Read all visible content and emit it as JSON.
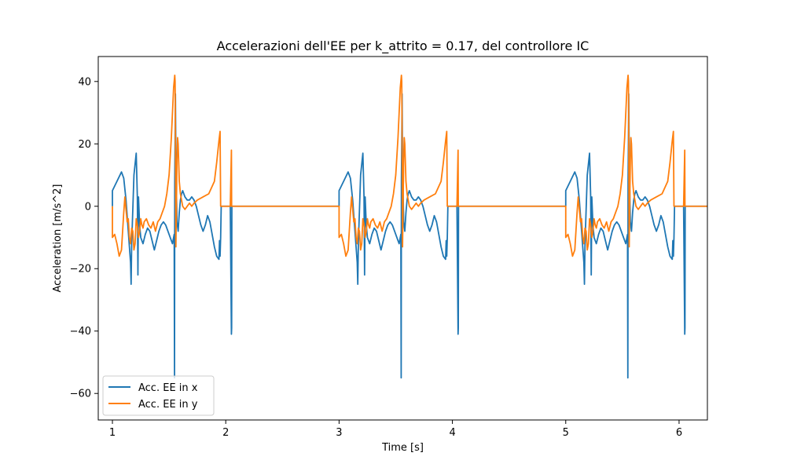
{
  "chart_data": {
    "type": "line",
    "title": "Accelerazioni dell'EE per k_attrito = 0.17, del controllore IC",
    "xlabel": "Time [s]",
    "ylabel": "Acceleration [m/s^2]",
    "xlim": [
      0.875,
      6.25
    ],
    "ylim": [
      -68.5,
      48
    ],
    "xticks": [
      1,
      2,
      3,
      4,
      5,
      6
    ],
    "yticks": [
      -60,
      -40,
      -20,
      0,
      20,
      40
    ],
    "grid": false,
    "legend_position": "lower-left",
    "series": [
      {
        "name": "Acc. EE in x",
        "color": "#1f77b4",
        "x": [
          1.0,
          1.0,
          1.04,
          1.08,
          1.1,
          1.12,
          1.14,
          1.16,
          1.165,
          1.17,
          1.19,
          1.21,
          1.22,
          1.225,
          1.23,
          1.24,
          1.25,
          1.27,
          1.29,
          1.31,
          1.33,
          1.35,
          1.37,
          1.39,
          1.41,
          1.43,
          1.45,
          1.47,
          1.49,
          1.51,
          1.53,
          1.545,
          1.548,
          1.55,
          1.553,
          1.556,
          1.56,
          1.57,
          1.58,
          1.59,
          1.6,
          1.61,
          1.62,
          1.64,
          1.66,
          1.68,
          1.7,
          1.72,
          1.74,
          1.76,
          1.78,
          1.8,
          1.82,
          1.84,
          1.86,
          1.88,
          1.9,
          1.92,
          1.94,
          1.945,
          1.95,
          1.955,
          1.96,
          2.0,
          2.04,
          2.05,
          2.052,
          2.054,
          2.06,
          2.1,
          2.2,
          2.5,
          2.8,
          2.99
        ],
        "y": [
          0,
          5,
          8,
          11,
          9,
          2,
          -8,
          -18,
          -25,
          -12,
          10,
          17,
          3,
          -22,
          3,
          -6,
          -10,
          -12,
          -9,
          -7,
          -8,
          -11,
          -14,
          -11,
          -8,
          -6,
          -5,
          -6,
          -8,
          -10,
          -12,
          -9,
          -55,
          8,
          20,
          36,
          14,
          -5,
          -8,
          -2,
          2,
          4,
          5,
          3,
          2,
          2,
          3,
          2,
          0,
          -3,
          -6,
          -8,
          -6,
          -3,
          -5,
          -9,
          -13,
          -16,
          -17,
          -11,
          -16,
          -10,
          0,
          0,
          0,
          -41,
          -39,
          0,
          0,
          0,
          0,
          0,
          0,
          0
        ]
      },
      {
        "name": "Acc. EE in y",
        "color": "#ff7f0e",
        "x": [
          1.0,
          1.0,
          1.02,
          1.04,
          1.06,
          1.08,
          1.1,
          1.11,
          1.12,
          1.13,
          1.14,
          1.15,
          1.16,
          1.17,
          1.18,
          1.19,
          1.2,
          1.21,
          1.22,
          1.23,
          1.24,
          1.25,
          1.26,
          1.27,
          1.28,
          1.3,
          1.32,
          1.34,
          1.36,
          1.38,
          1.4,
          1.42,
          1.44,
          1.46,
          1.48,
          1.5,
          1.52,
          1.54,
          1.55,
          1.553,
          1.555,
          1.56,
          1.57,
          1.575,
          1.58,
          1.59,
          1.6,
          1.62,
          1.64,
          1.66,
          1.68,
          1.7,
          1.72,
          1.75,
          1.8,
          1.85,
          1.9,
          1.92,
          1.94,
          1.95,
          1.955,
          1.96,
          2.0,
          2.04,
          2.05,
          2.052,
          2.054,
          2.06,
          2.1,
          2.2,
          2.5,
          2.8,
          2.99
        ],
        "y": [
          0,
          -10,
          -9,
          -12,
          -16,
          -14,
          -2,
          3,
          -1,
          -5,
          -4,
          -10,
          -12,
          -7,
          -8,
          -14,
          -12,
          -4,
          -6,
          -10,
          -8,
          -4,
          -6,
          -7,
          -5,
          -4,
          -6,
          -7,
          -5,
          -8,
          -5,
          -4,
          -2,
          0,
          4,
          10,
          22,
          38,
          42,
          40,
          30,
          -13,
          15,
          22,
          20,
          8,
          4,
          0,
          -1,
          0,
          1,
          0,
          1,
          2,
          3,
          4,
          8,
          14,
          21,
          24,
          0,
          0,
          0,
          0,
          18,
          0,
          0,
          0,
          0,
          0,
          0,
          0,
          0
        ]
      }
    ],
    "periods": [
      0,
      2,
      4
    ]
  }
}
